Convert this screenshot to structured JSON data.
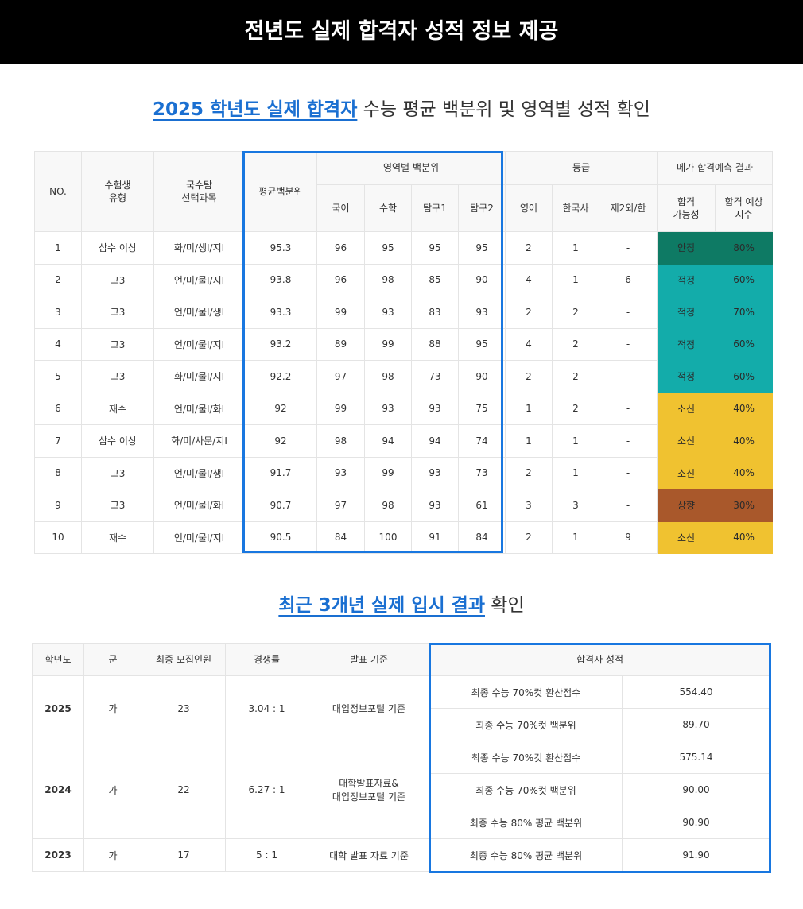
{
  "banner": {
    "title": "전년도 실제 합격자 성적 정보 제공"
  },
  "section1": {
    "heading_highlight": "2025 학년도 실제 합격자",
    "heading_rest": " 수능 평균 백분위 및 영역별 성적 확인"
  },
  "table1": {
    "headers": {
      "no": "NO.",
      "type": "수험생\n유형",
      "subjects": "국수탐\n선택과목",
      "avg": "평균백분위",
      "area_pct": "영역별 백분위",
      "grade": "등급",
      "mega": "메가 합격예측 결과",
      "korean": "국어",
      "math": "수학",
      "inq1": "탐구1",
      "inq2": "탐구2",
      "english": "영어",
      "history": "한국사",
      "lang2": "제2외/한",
      "possibility": "합격\n가능성",
      "index": "합격 예상\n지수"
    },
    "rows": [
      {
        "no": "1",
        "type": "삼수 이상",
        "subjects": "화/미/생I/지I",
        "avg": "95.3",
        "korean": "96",
        "math": "95",
        "inq1": "95",
        "inq2": "95",
        "english": "2",
        "history": "1",
        "lang2": "-",
        "possibility": "안정",
        "index": "80%",
        "color": "#0e7a64"
      },
      {
        "no": "2",
        "type": "고3",
        "subjects": "언/미/물I/지I",
        "avg": "93.8",
        "korean": "96",
        "math": "98",
        "inq1": "85",
        "inq2": "90",
        "english": "4",
        "history": "1",
        "lang2": "6",
        "possibility": "적정",
        "index": "60%",
        "color": "#13acaa"
      },
      {
        "no": "3",
        "type": "고3",
        "subjects": "언/미/물I/생I",
        "avg": "93.3",
        "korean": "99",
        "math": "93",
        "inq1": "83",
        "inq2": "93",
        "english": "2",
        "history": "2",
        "lang2": "-",
        "possibility": "적정",
        "index": "70%",
        "color": "#13acaa"
      },
      {
        "no": "4",
        "type": "고3",
        "subjects": "언/미/물I/지I",
        "avg": "93.2",
        "korean": "89",
        "math": "99",
        "inq1": "88",
        "inq2": "95",
        "english": "4",
        "history": "2",
        "lang2": "-",
        "possibility": "적정",
        "index": "60%",
        "color": "#13acaa"
      },
      {
        "no": "5",
        "type": "고3",
        "subjects": "화/미/물I/지I",
        "avg": "92.2",
        "korean": "97",
        "math": "98",
        "inq1": "73",
        "inq2": "90",
        "english": "2",
        "history": "2",
        "lang2": "-",
        "possibility": "적정",
        "index": "60%",
        "color": "#13acaa"
      },
      {
        "no": "6",
        "type": "재수",
        "subjects": "언/미/물I/화I",
        "avg": "92",
        "korean": "99",
        "math": "93",
        "inq1": "93",
        "inq2": "75",
        "english": "1",
        "history": "2",
        "lang2": "-",
        "possibility": "소신",
        "index": "40%",
        "color": "#f0c230"
      },
      {
        "no": "7",
        "type": "삼수 이상",
        "subjects": "화/미/사문/지I",
        "avg": "92",
        "korean": "98",
        "math": "94",
        "inq1": "94",
        "inq2": "74",
        "english": "1",
        "history": "1",
        "lang2": "-",
        "possibility": "소신",
        "index": "40%",
        "color": "#f0c230"
      },
      {
        "no": "8",
        "type": "고3",
        "subjects": "언/미/물I/생I",
        "avg": "91.7",
        "korean": "93",
        "math": "99",
        "inq1": "93",
        "inq2": "73",
        "english": "2",
        "history": "1",
        "lang2": "-",
        "possibility": "소신",
        "index": "40%",
        "color": "#f0c230"
      },
      {
        "no": "9",
        "type": "고3",
        "subjects": "언/미/물I/화I",
        "avg": "90.7",
        "korean": "97",
        "math": "98",
        "inq1": "93",
        "inq2": "61",
        "english": "3",
        "history": "3",
        "lang2": "-",
        "possibility": "상향",
        "index": "30%",
        "color": "#a9582b"
      },
      {
        "no": "10",
        "type": "재수",
        "subjects": "언/미/물I/지I",
        "avg": "90.5",
        "korean": "84",
        "math": "100",
        "inq1": "91",
        "inq2": "84",
        "english": "2",
        "history": "1",
        "lang2": "9",
        "possibility": "소신",
        "index": "40%",
        "color": "#f0c230"
      }
    ]
  },
  "section2": {
    "heading_highlight": "최근 3개년 실제 입시 결과",
    "heading_rest": " 확인"
  },
  "table2": {
    "headers": {
      "year": "학년도",
      "group": "군",
      "quota": "최종 모집인원",
      "ratio": "경쟁률",
      "basis": "발표 기준",
      "scores": "합격자 성적"
    },
    "years": [
      {
        "year": "2025",
        "group": "가",
        "quota": "23",
        "ratio": "3.04 : 1",
        "basis": "대입정보포털 기준",
        "scores": [
          {
            "label": "최종 수능 70%컷 환산점수",
            "value": "554.40"
          },
          {
            "label": "최종 수능 70%컷 백분위",
            "value": "89.70"
          }
        ]
      },
      {
        "year": "2024",
        "group": "가",
        "quota": "22",
        "ratio": "6.27 : 1",
        "basis": "대학발표자료&\n대입정보포털 기준",
        "scores": [
          {
            "label": "최종 수능 70%컷 환산점수",
            "value": "575.14"
          },
          {
            "label": "최종 수능 70%컷 백분위",
            "value": "90.00"
          },
          {
            "label": "최종 수능 80% 평균 백분위",
            "value": "90.90"
          }
        ]
      },
      {
        "year": "2023",
        "group": "가",
        "quota": "17",
        "ratio": "5 : 1",
        "basis": "대학 발표 자료 기준",
        "scores": [
          {
            "label": "최종 수능 80% 평균 백분위",
            "value": "91.90"
          }
        ]
      }
    ]
  },
  "colors": {
    "accent_blue": "#1877e0",
    "heading_blue": "#1a6fd1",
    "stable": "#0e7a64",
    "adequate": "#13acaa",
    "belief": "#f0c230",
    "reach": "#a9582b"
  }
}
